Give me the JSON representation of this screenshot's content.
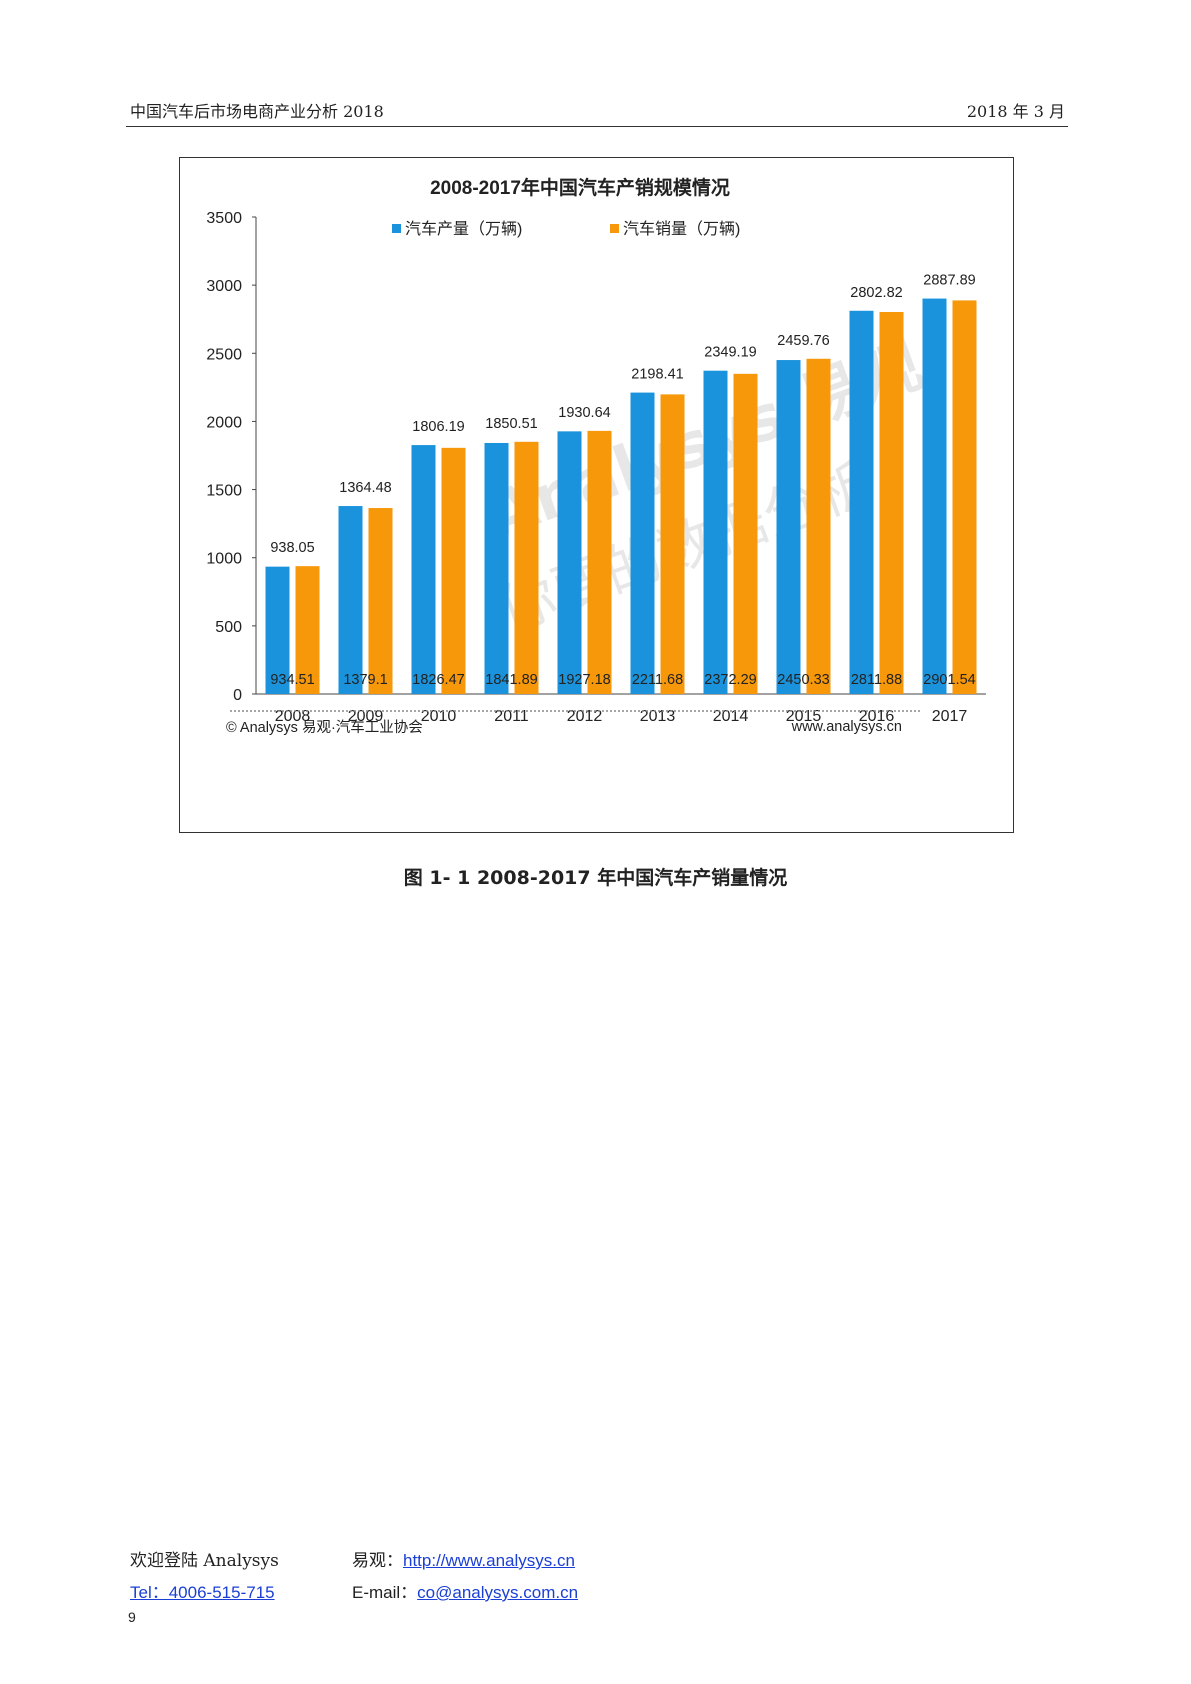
{
  "header": {
    "title": "中国汽车后市场电商产业分析 2018",
    "date": "2018 年 3 月"
  },
  "chart_data": {
    "type": "bar",
    "title": "2008-2017年中国汽车产销规模情况",
    "categories": [
      "2008",
      "2009",
      "2010",
      "2011",
      "2012",
      "2013",
      "2014",
      "2015",
      "2016",
      "2017"
    ],
    "series": [
      {
        "name": "汽车产量（万辆)",
        "color": "#1a93dc",
        "values": [
          934.51,
          1379.1,
          1826.47,
          1841.89,
          1927.18,
          2211.68,
          2372.29,
          2450.33,
          2811.88,
          2901.54
        ],
        "labels": [
          "934.51",
          "1379.1",
          "1826.47",
          "1841.89",
          "1927.18",
          "2211.68",
          "2372.29",
          "2450.33",
          "2811.88",
          "2901.54"
        ]
      },
      {
        "name": "汽车销量（万辆)",
        "color": "#f7970a",
        "values": [
          938.05,
          1364.48,
          1806.19,
          1850.51,
          1930.64,
          2198.41,
          2349.19,
          2459.76,
          2802.82,
          2887.89
        ],
        "labels": [
          "938.05",
          "1364.48",
          "1806.19",
          "1850.51",
          "1930.64",
          "2198.41",
          "2349.19",
          "2459.76",
          "2802.82",
          "2887.89"
        ]
      }
    ],
    "y_ticks": [
      "0",
      "500",
      "1000",
      "1500",
      "2000",
      "2500",
      "3000",
      "3500"
    ],
    "ylim": [
      0,
      3500
    ],
    "legend_position": "top",
    "grid": false,
    "source": "© Analysys 易观·汽车工业协会",
    "website": "www.analysys.cn",
    "watermark": {
      "brand": "Analysys 易观",
      "slogan": "你要的数据分析"
    }
  },
  "caption": "图 1- 1 2008-2017 年中国汽车产销量情况",
  "footer": {
    "welcome": "欢迎登陆 Analysys",
    "yiguan_label": "易观：",
    "url": "http://www.analysys.cn",
    "tel": "Tel：4006-515-715",
    "email_label": "E-mail：",
    "email": "co@analysys.com.cn"
  },
  "page_number": "9"
}
